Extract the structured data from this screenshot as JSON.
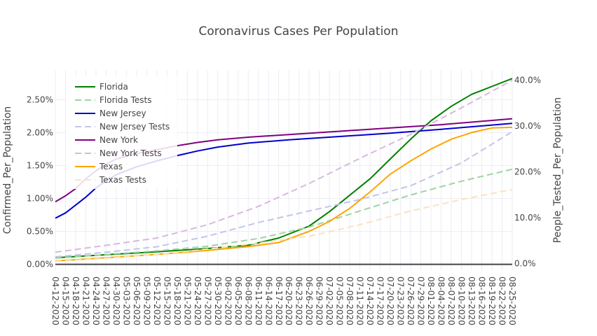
{
  "chart_data": {
    "type": "line",
    "title": "Coronavirus Cases Per Population",
    "ylabel": "Confirmed_Per_Population",
    "y2label": "People_Tested_Per_Population",
    "ylim": [
      -0.001,
      0.0295
    ],
    "y2lim": [
      -0.0157,
      0.4225
    ],
    "yticks": [
      0,
      0.005,
      0.01,
      0.015,
      0.02,
      0.025
    ],
    "ytick_labels": [
      "0.00%",
      "0.50%",
      "1.00%",
      "1.50%",
      "2.00%",
      "2.50%"
    ],
    "y2ticks": [
      0,
      0.1,
      0.2,
      0.3,
      0.4
    ],
    "y2tick_labels": [
      "0.0%",
      "10.0%",
      "20.0%",
      "30.0%",
      "40.0%"
    ],
    "x_start": "2020-04-12",
    "x_end": "2020-08-25",
    "x_ticks": [
      "04-12-2020",
      "04-15-2020",
      "04-18-2020",
      "04-21-2020",
      "04-24-2020",
      "04-27-2020",
      "04-30-2020",
      "05-03-2020",
      "05-06-2020",
      "05-09-2020",
      "05-12-2020",
      "05-15-2020",
      "05-18-2020",
      "05-21-2020",
      "05-24-2020",
      "05-27-2020",
      "05-30-2020",
      "06-02-2020",
      "06-05-2020",
      "06-08-2020",
      "06-11-2020",
      "06-14-2020",
      "06-17-2020",
      "06-20-2020",
      "06-23-2020",
      "06-26-2020",
      "06-29-2020",
      "07-02-2020",
      "07-05-2020",
      "07-08-2020",
      "07-11-2020",
      "07-14-2020",
      "07-17-2020",
      "07-20-2020",
      "07-23-2020",
      "07-26-2020",
      "07-29-2020",
      "08-01-2020",
      "08-04-2020",
      "08-07-2020",
      "08-10-2020",
      "08-13-2020",
      "08-16-2020",
      "08-19-2020",
      "08-22-2020",
      "08-25-2020"
    ],
    "legend_position": "top-left",
    "series": [
      {
        "name": "Florida",
        "color": "#008000",
        "dash": false,
        "axis": "y",
        "points": [
          [
            "2020-04-12",
            0.001
          ],
          [
            "2020-04-27",
            0.00145
          ],
          [
            "2020-05-12",
            0.0019
          ],
          [
            "2020-05-27",
            0.0024
          ],
          [
            "2020-06-08",
            0.0029
          ],
          [
            "2020-06-17",
            0.004
          ],
          [
            "2020-06-26",
            0.0058
          ],
          [
            "2020-07-02",
            0.008
          ],
          [
            "2020-07-08",
            0.0105
          ],
          [
            "2020-07-14",
            0.013
          ],
          [
            "2020-07-20",
            0.016
          ],
          [
            "2020-07-26",
            0.019
          ],
          [
            "2020-08-01",
            0.0218
          ],
          [
            "2020-08-07",
            0.024
          ],
          [
            "2020-08-13",
            0.0258
          ],
          [
            "2020-08-19",
            0.027
          ],
          [
            "2020-08-25",
            0.0282
          ]
        ]
      },
      {
        "name": "Florida Tests",
        "color": "#9fd39f",
        "dash": true,
        "axis": "y2",
        "points": [
          [
            "2020-04-12",
            0.012
          ],
          [
            "2020-04-27",
            0.02
          ],
          [
            "2020-05-12",
            0.028
          ],
          [
            "2020-05-27",
            0.038
          ],
          [
            "2020-06-11",
            0.055
          ],
          [
            "2020-06-26",
            0.08
          ],
          [
            "2020-07-11",
            0.115
          ],
          [
            "2020-07-26",
            0.15
          ],
          [
            "2020-08-10",
            0.18
          ],
          [
            "2020-08-25",
            0.206
          ]
        ]
      },
      {
        "name": "New Jersey",
        "color": "#0000cd",
        "dash": false,
        "axis": "y",
        "points": [
          [
            "2020-04-12",
            0.007
          ],
          [
            "2020-04-15",
            0.0078
          ],
          [
            "2020-04-18",
            0.009
          ],
          [
            "2020-04-21",
            0.0102
          ],
          [
            "2020-04-24",
            0.0116
          ],
          [
            "2020-04-27",
            0.0127
          ],
          [
            "2020-04-30",
            0.0136
          ],
          [
            "2020-05-06",
            0.0148
          ],
          [
            "2020-05-12",
            0.0157
          ],
          [
            "2020-05-18",
            0.0165
          ],
          [
            "2020-05-24",
            0.0172
          ],
          [
            "2020-05-30",
            0.0178
          ],
          [
            "2020-06-08",
            0.0184
          ],
          [
            "2020-06-20",
            0.0189
          ],
          [
            "2020-07-05",
            0.0194
          ],
          [
            "2020-07-20",
            0.0199
          ],
          [
            "2020-08-04",
            0.0205
          ],
          [
            "2020-08-25",
            0.0214
          ]
        ]
      },
      {
        "name": "New Jersey Tests",
        "color": "#c2c5e8",
        "dash": true,
        "axis": "y2",
        "points": [
          [
            "2020-04-12",
            0.015
          ],
          [
            "2020-04-27",
            0.025
          ],
          [
            "2020-05-12",
            0.037
          ],
          [
            "2020-05-27",
            0.06
          ],
          [
            "2020-06-11",
            0.09
          ],
          [
            "2020-06-26",
            0.115
          ],
          [
            "2020-07-11",
            0.14
          ],
          [
            "2020-07-26",
            0.17
          ],
          [
            "2020-08-10",
            0.22
          ],
          [
            "2020-08-25",
            0.288
          ]
        ]
      },
      {
        "name": "New York",
        "color": "#800080",
        "dash": false,
        "axis": "y",
        "points": [
          [
            "2020-04-12",
            0.0095
          ],
          [
            "2020-04-15",
            0.0104
          ],
          [
            "2020-04-18",
            0.0115
          ],
          [
            "2020-04-21",
            0.013
          ],
          [
            "2020-04-24",
            0.0142
          ],
          [
            "2020-04-27",
            0.0152
          ],
          [
            "2020-04-30",
            0.016
          ],
          [
            "2020-05-06",
            0.0168
          ],
          [
            "2020-05-12",
            0.0174
          ],
          [
            "2020-05-18",
            0.018
          ],
          [
            "2020-05-24",
            0.0185
          ],
          [
            "2020-05-30",
            0.0189
          ],
          [
            "2020-06-08",
            0.0193
          ],
          [
            "2020-06-20",
            0.0197
          ],
          [
            "2020-07-05",
            0.0202
          ],
          [
            "2020-07-20",
            0.0207
          ],
          [
            "2020-08-04",
            0.0212
          ],
          [
            "2020-08-25",
            0.0221
          ]
        ]
      },
      {
        "name": "New York Tests",
        "color": "#d7b9df",
        "dash": true,
        "axis": "y2",
        "points": [
          [
            "2020-04-12",
            0.025
          ],
          [
            "2020-04-27",
            0.04
          ],
          [
            "2020-05-12",
            0.056
          ],
          [
            "2020-05-27",
            0.085
          ],
          [
            "2020-06-11",
            0.125
          ],
          [
            "2020-06-26",
            0.175
          ],
          [
            "2020-07-11",
            0.23
          ],
          [
            "2020-07-26",
            0.282
          ],
          [
            "2020-08-10",
            0.34
          ],
          [
            "2020-08-25",
            0.4
          ]
        ]
      },
      {
        "name": "Texas",
        "color": "#ffa500",
        "dash": false,
        "axis": "y",
        "points": [
          [
            "2020-04-12",
            0.0005
          ],
          [
            "2020-04-27",
            0.001
          ],
          [
            "2020-05-12",
            0.0015
          ],
          [
            "2020-05-27",
            0.0021
          ],
          [
            "2020-06-08",
            0.0027
          ],
          [
            "2020-06-17",
            0.0033
          ],
          [
            "2020-06-26",
            0.005
          ],
          [
            "2020-07-02",
            0.0065
          ],
          [
            "2020-07-08",
            0.0085
          ],
          [
            "2020-07-14",
            0.011
          ],
          [
            "2020-07-20",
            0.0137
          ],
          [
            "2020-07-26",
            0.0157
          ],
          [
            "2020-08-01",
            0.0175
          ],
          [
            "2020-08-07",
            0.019
          ],
          [
            "2020-08-13",
            0.02
          ],
          [
            "2020-08-19",
            0.0207
          ],
          [
            "2020-08-25",
            0.0208
          ]
        ]
      },
      {
        "name": "Texas Tests",
        "color": "#fbe2bd",
        "dash": true,
        "axis": "y2",
        "points": [
          [
            "2020-04-12",
            0.005
          ],
          [
            "2020-04-27",
            0.012
          ],
          [
            "2020-05-12",
            0.02
          ],
          [
            "2020-05-27",
            0.032
          ],
          [
            "2020-06-11",
            0.045
          ],
          [
            "2020-06-26",
            0.06
          ],
          [
            "2020-07-11",
            0.085
          ],
          [
            "2020-07-26",
            0.115
          ],
          [
            "2020-08-10",
            0.14
          ],
          [
            "2020-08-25",
            0.162
          ]
        ]
      }
    ]
  }
}
